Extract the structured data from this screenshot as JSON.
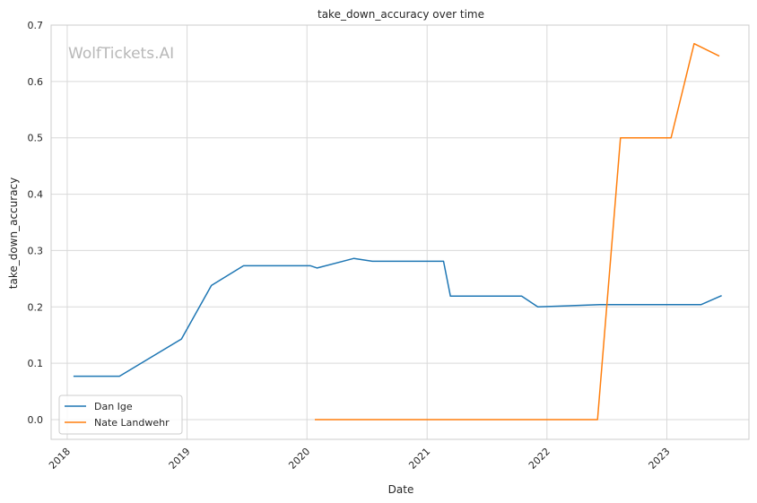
{
  "watermark": "WolfTickets.AI",
  "chart_data": {
    "type": "line",
    "title": "take_down_accuracy over time",
    "xlabel": "Date",
    "ylabel": "take_down_accuracy",
    "x_ticks": [
      "2018",
      "2019",
      "2020",
      "2021",
      "2022",
      "2023"
    ],
    "y_ticks": [
      "0.0",
      "0.1",
      "0.2",
      "0.3",
      "0.4",
      "0.5",
      "0.6",
      "0.7"
    ],
    "xlim": [
      "2017-11-13",
      "2023-09-08"
    ],
    "ylim": [
      -0.035,
      0.7
    ],
    "grid": true,
    "legend_position": "lower-left",
    "series": [
      {
        "name": "Dan Ige",
        "color": "#1f77b4",
        "points": [
          [
            "2018-01-20",
            0.077
          ],
          [
            "2018-06-09",
            0.077
          ],
          [
            "2018-12-15",
            0.143
          ],
          [
            "2019-03-16",
            0.238
          ],
          [
            "2019-06-22",
            0.273
          ],
          [
            "2019-12-21",
            0.273
          ],
          [
            "2020-01-12",
            0.273
          ],
          [
            "2020-02-01",
            0.269
          ],
          [
            "2020-05-23",
            0.286
          ],
          [
            "2020-07-18",
            0.281
          ],
          [
            "2021-02-20",
            0.281
          ],
          [
            "2021-03-13",
            0.219
          ],
          [
            "2021-10-16",
            0.219
          ],
          [
            "2021-12-04",
            0.2
          ],
          [
            "2022-06-11",
            0.204
          ],
          [
            "2023-04-15",
            0.204
          ],
          [
            "2023-06-17",
            0.22
          ]
        ]
      },
      {
        "name": "Nate Landwehr",
        "color": "#ff7f0e",
        "points": [
          [
            "2020-01-25",
            0.0
          ],
          [
            "2022-06-04",
            0.0
          ],
          [
            "2022-08-13",
            0.5
          ],
          [
            "2023-01-07",
            0.5
          ],
          [
            "2023-01-14",
            0.5
          ],
          [
            "2023-03-25",
            0.667
          ],
          [
            "2023-06-10",
            0.645
          ]
        ]
      }
    ]
  }
}
